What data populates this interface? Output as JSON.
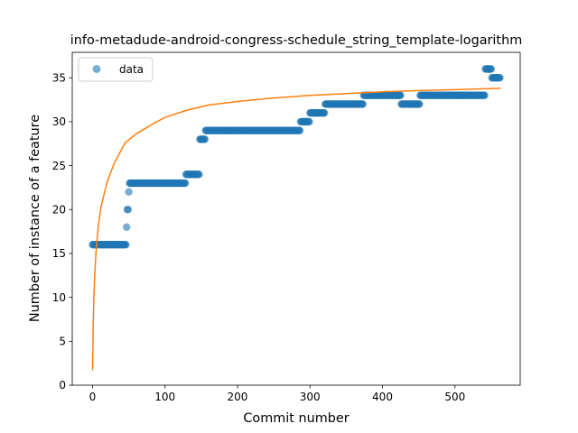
{
  "chart_data": {
    "type": "scatter",
    "title": "info-metadude-android-congress-schedule_string_template-logarithm",
    "xlabel": "Commit number",
    "ylabel": "Number of instance of a feature",
    "xlim": [
      -28,
      590
    ],
    "ylim": [
      0,
      37.9
    ],
    "xticks": [
      0,
      100,
      200,
      300,
      400,
      500
    ],
    "yticks": [
      0,
      5,
      10,
      15,
      20,
      25,
      30,
      35
    ],
    "grid": false,
    "legend": {
      "placement": "upper-left",
      "entries": [
        "data"
      ]
    },
    "colors": {
      "data": "#1f77b4",
      "fit": "#ff7f0e"
    },
    "series": [
      {
        "name": "data",
        "kind": "scatter",
        "segments": [
          {
            "x_start": 0,
            "x_end": 46,
            "y": 16
          },
          {
            "x_start": 47,
            "x_end": 47,
            "y": 18
          },
          {
            "x_start": 48,
            "x_end": 49,
            "y": 20
          },
          {
            "x_start": 50,
            "x_end": 50,
            "y": 22
          },
          {
            "x_start": 51,
            "x_end": 128,
            "y": 23
          },
          {
            "x_start": 129,
            "x_end": 147,
            "y": 24
          },
          {
            "x_start": 148,
            "x_end": 155,
            "y": 28
          },
          {
            "x_start": 156,
            "x_end": 286,
            "y": 29
          },
          {
            "x_start": 287,
            "x_end": 299,
            "y": 30
          },
          {
            "x_start": 300,
            "x_end": 320,
            "y": 31
          },
          {
            "x_start": 321,
            "x_end": 373,
            "y": 32
          },
          {
            "x_start": 374,
            "x_end": 425,
            "y": 33
          },
          {
            "x_start": 426,
            "x_end": 451,
            "y": 32
          },
          {
            "x_start": 452,
            "x_end": 541,
            "y": 33
          },
          {
            "x_start": 542,
            "x_end": 550,
            "y": 36
          },
          {
            "x_start": 551,
            "x_end": 562,
            "y": 35
          }
        ]
      },
      {
        "kind": "line",
        "x": [
          0,
          1,
          2,
          3,
          5,
          8,
          12,
          20,
          30,
          45,
          60,
          80,
          100,
          130,
          160,
          200,
          250,
          300,
          350,
          400,
          450,
          500,
          563
        ],
        "y": [
          1.7,
          7.2,
          10.4,
          12.6,
          15.4,
          18.2,
          20.4,
          23.1,
          25.3,
          27.6,
          28.6,
          29.6,
          30.5,
          31.3,
          31.9,
          32.3,
          32.7,
          33.0,
          33.2,
          33.4,
          33.55,
          33.65,
          33.8
        ]
      }
    ]
  }
}
